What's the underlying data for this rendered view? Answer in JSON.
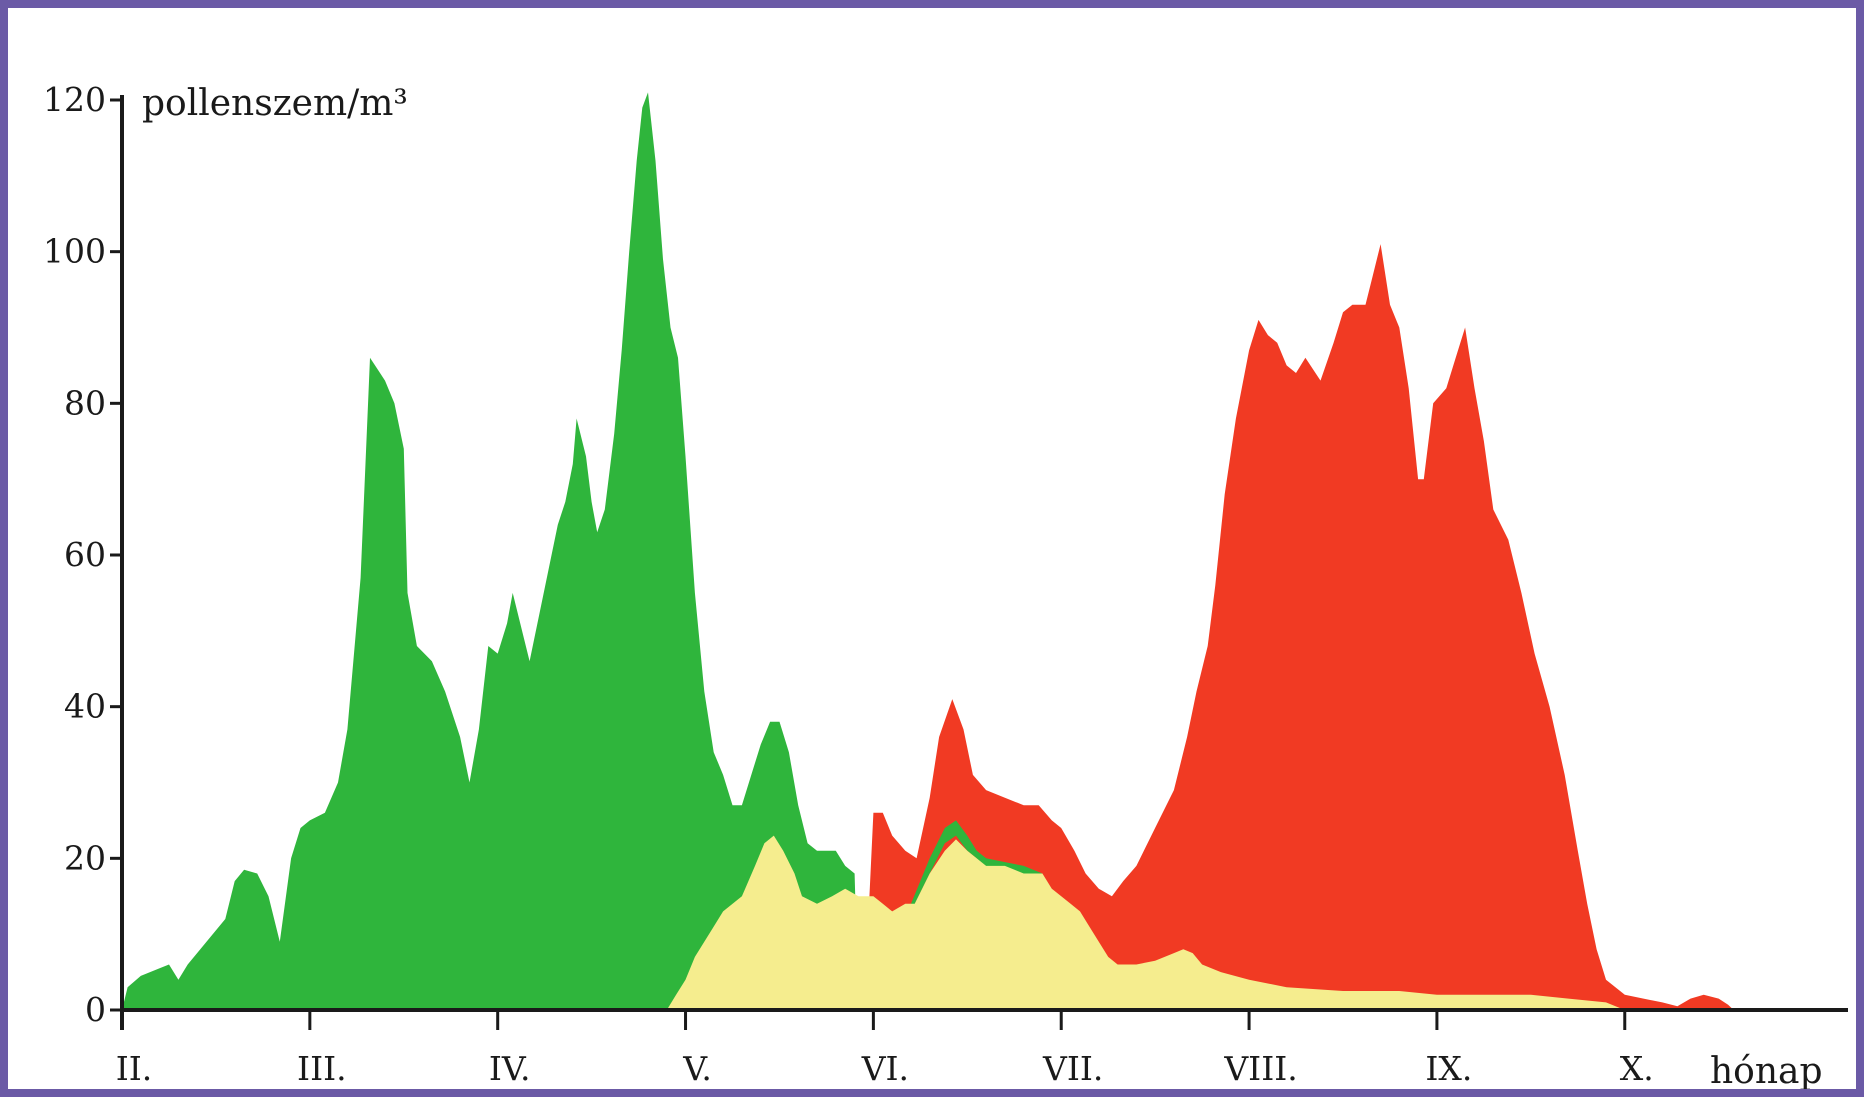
{
  "chart_data": {
    "type": "area",
    "ylabel": "pollenszem/m³",
    "xlabel": "hónap",
    "ylim": [
      0,
      120
    ],
    "yticks": [
      0,
      20,
      40,
      60,
      80,
      100,
      120
    ],
    "xlim": [
      2,
      11.05
    ],
    "months": [
      "II.",
      "III.",
      "IV.",
      "V.",
      "VI.",
      "VII.",
      "VIII.",
      "IX.",
      "X."
    ],
    "grid": false,
    "series": [
      {
        "color": "#2fb53c",
        "points": [
          [
            2.0,
            0
          ],
          [
            2.03,
            3
          ],
          [
            2.1,
            4.5
          ],
          [
            2.2,
            5.5
          ],
          [
            2.25,
            6
          ],
          [
            2.3,
            4
          ],
          [
            2.35,
            6
          ],
          [
            2.45,
            9
          ],
          [
            2.55,
            12
          ],
          [
            2.6,
            17
          ],
          [
            2.65,
            18.5
          ],
          [
            2.72,
            18
          ],
          [
            2.78,
            15
          ],
          [
            2.84,
            9
          ],
          [
            2.9,
            20
          ],
          [
            2.95,
            24
          ],
          [
            3.0,
            25
          ],
          [
            3.08,
            26
          ],
          [
            3.15,
            30
          ],
          [
            3.2,
            37
          ],
          [
            3.27,
            57
          ],
          [
            3.32,
            86
          ],
          [
            3.4,
            83
          ],
          [
            3.45,
            80
          ],
          [
            3.5,
            74
          ],
          [
            3.52,
            55
          ],
          [
            3.57,
            48
          ],
          [
            3.65,
            46
          ],
          [
            3.72,
            42
          ],
          [
            3.8,
            36
          ],
          [
            3.85,
            30
          ],
          [
            3.9,
            37
          ],
          [
            3.95,
            48
          ],
          [
            4.0,
            47
          ],
          [
            4.05,
            51
          ],
          [
            4.08,
            55
          ],
          [
            4.12,
            51
          ],
          [
            4.17,
            46
          ],
          [
            4.22,
            52
          ],
          [
            4.27,
            58
          ],
          [
            4.32,
            64
          ],
          [
            4.36,
            67
          ],
          [
            4.4,
            72
          ],
          [
            4.42,
            78
          ],
          [
            4.47,
            73
          ],
          [
            4.5,
            67
          ],
          [
            4.53,
            63
          ],
          [
            4.57,
            66
          ],
          [
            4.62,
            76
          ],
          [
            4.66,
            87
          ],
          [
            4.7,
            100
          ],
          [
            4.74,
            112
          ],
          [
            4.77,
            119
          ],
          [
            4.8,
            121
          ],
          [
            4.84,
            112
          ],
          [
            4.88,
            99
          ],
          [
            4.92,
            90
          ],
          [
            4.96,
            86
          ],
          [
            5.0,
            73
          ],
          [
            5.05,
            55
          ],
          [
            5.1,
            42
          ],
          [
            5.15,
            34
          ],
          [
            5.2,
            31
          ],
          [
            5.25,
            27
          ],
          [
            5.3,
            27
          ],
          [
            5.35,
            31
          ],
          [
            5.4,
            35
          ],
          [
            5.45,
            38
          ],
          [
            5.5,
            38
          ],
          [
            5.55,
            34
          ],
          [
            5.6,
            27
          ],
          [
            5.65,
            22
          ],
          [
            5.7,
            21
          ],
          [
            5.75,
            21
          ],
          [
            5.8,
            21
          ],
          [
            5.85,
            19
          ],
          [
            5.9,
            18
          ],
          [
            5.92,
            0
          ]
        ]
      },
      {
        "color": "#f13a23",
        "points": [
          [
            5.95,
            0
          ],
          [
            6.0,
            26
          ],
          [
            6.05,
            26
          ],
          [
            6.1,
            23
          ],
          [
            6.17,
            21
          ],
          [
            6.23,
            20
          ],
          [
            6.3,
            28
          ],
          [
            6.35,
            36
          ],
          [
            6.42,
            41
          ],
          [
            6.48,
            37
          ],
          [
            6.53,
            31
          ],
          [
            6.6,
            29
          ],
          [
            6.7,
            28
          ],
          [
            6.8,
            27
          ],
          [
            6.88,
            27
          ],
          [
            6.95,
            25
          ],
          [
            7.0,
            24
          ],
          [
            7.07,
            21
          ],
          [
            7.13,
            18
          ],
          [
            7.2,
            16
          ],
          [
            7.27,
            15
          ],
          [
            7.33,
            17
          ],
          [
            7.4,
            19
          ],
          [
            7.5,
            24
          ],
          [
            7.6,
            29
          ],
          [
            7.67,
            36
          ],
          [
            7.72,
            42
          ],
          [
            7.78,
            48
          ],
          [
            7.82,
            56
          ],
          [
            7.87,
            68
          ],
          [
            7.93,
            78
          ],
          [
            8.0,
            87
          ],
          [
            8.05,
            91
          ],
          [
            8.1,
            89
          ],
          [
            8.15,
            88
          ],
          [
            8.2,
            85
          ],
          [
            8.25,
            84
          ],
          [
            8.3,
            86
          ],
          [
            8.38,
            83
          ],
          [
            8.45,
            88
          ],
          [
            8.5,
            92
          ],
          [
            8.55,
            93
          ],
          [
            8.62,
            93
          ],
          [
            8.65,
            96
          ],
          [
            8.7,
            101
          ],
          [
            8.75,
            93
          ],
          [
            8.8,
            90
          ],
          [
            8.85,
            82
          ],
          [
            8.9,
            70
          ],
          [
            8.93,
            70
          ],
          [
            8.98,
            80
          ],
          [
            9.05,
            82
          ],
          [
            9.1,
            86
          ],
          [
            9.15,
            90
          ],
          [
            9.2,
            82
          ],
          [
            9.25,
            75
          ],
          [
            9.3,
            66
          ],
          [
            9.38,
            62
          ],
          [
            9.45,
            55
          ],
          [
            9.52,
            47
          ],
          [
            9.6,
            40
          ],
          [
            9.68,
            31
          ],
          [
            9.75,
            21
          ],
          [
            9.8,
            14
          ],
          [
            9.85,
            8
          ],
          [
            9.9,
            4
          ],
          [
            9.95,
            3
          ],
          [
            10.0,
            2
          ],
          [
            10.1,
            1.5
          ],
          [
            10.2,
            1
          ],
          [
            10.28,
            0.5
          ],
          [
            10.35,
            1.5
          ],
          [
            10.42,
            2
          ],
          [
            10.5,
            1.5
          ],
          [
            10.55,
            0.7
          ],
          [
            10.58,
            0
          ]
        ]
      },
      {
        "color": "#2fb53c",
        "points": [
          [
            6.2,
            14
          ],
          [
            6.3,
            20
          ],
          [
            6.38,
            24
          ],
          [
            6.44,
            25
          ],
          [
            6.5,
            23
          ],
          [
            6.55,
            21
          ],
          [
            6.6,
            20
          ],
          [
            6.7,
            19.5
          ],
          [
            6.8,
            19
          ],
          [
            6.9,
            18
          ],
          [
            6.88,
            16
          ],
          [
            6.8,
            17
          ],
          [
            6.7,
            18
          ],
          [
            6.6,
            18.5
          ],
          [
            6.55,
            20
          ],
          [
            6.5,
            21
          ],
          [
            6.44,
            23
          ],
          [
            6.38,
            22
          ],
          [
            6.3,
            18
          ],
          [
            6.2,
            13
          ]
        ]
      },
      {
        "color": "#f5ed8e",
        "points": [
          [
            4.9,
            0
          ],
          [
            4.95,
            2
          ],
          [
            5.0,
            4
          ],
          [
            5.05,
            7
          ],
          [
            5.1,
            9
          ],
          [
            5.15,
            11
          ],
          [
            5.2,
            13
          ],
          [
            5.3,
            15
          ],
          [
            5.37,
            19
          ],
          [
            5.42,
            22
          ],
          [
            5.47,
            23
          ],
          [
            5.52,
            21
          ],
          [
            5.58,
            18
          ],
          [
            5.62,
            15
          ],
          [
            5.7,
            14
          ],
          [
            5.78,
            15
          ],
          [
            5.85,
            16
          ],
          [
            5.92,
            15
          ],
          [
            6.0,
            15
          ],
          [
            6.05,
            14
          ],
          [
            6.1,
            13
          ],
          [
            6.17,
            14
          ],
          [
            6.22,
            14
          ],
          [
            6.3,
            18
          ],
          [
            6.38,
            21
          ],
          [
            6.44,
            22.5
          ],
          [
            6.5,
            21
          ],
          [
            6.6,
            19
          ],
          [
            6.7,
            19
          ],
          [
            6.8,
            18
          ],
          [
            6.9,
            18
          ],
          [
            6.95,
            16
          ],
          [
            7.05,
            14
          ],
          [
            7.1,
            13
          ],
          [
            7.15,
            11
          ],
          [
            7.2,
            9
          ],
          [
            7.25,
            7
          ],
          [
            7.3,
            6
          ],
          [
            7.4,
            6
          ],
          [
            7.5,
            6.5
          ],
          [
            7.6,
            7.5
          ],
          [
            7.65,
            8
          ],
          [
            7.7,
            7.5
          ],
          [
            7.75,
            6
          ],
          [
            7.85,
            5
          ],
          [
            8.0,
            4
          ],
          [
            8.2,
            3
          ],
          [
            8.5,
            2.5
          ],
          [
            8.8,
            2.5
          ],
          [
            9.0,
            2
          ],
          [
            9.2,
            2
          ],
          [
            9.5,
            2
          ],
          [
            9.7,
            1.5
          ],
          [
            9.9,
            1
          ],
          [
            10.0,
            0
          ]
        ]
      }
    ]
  }
}
